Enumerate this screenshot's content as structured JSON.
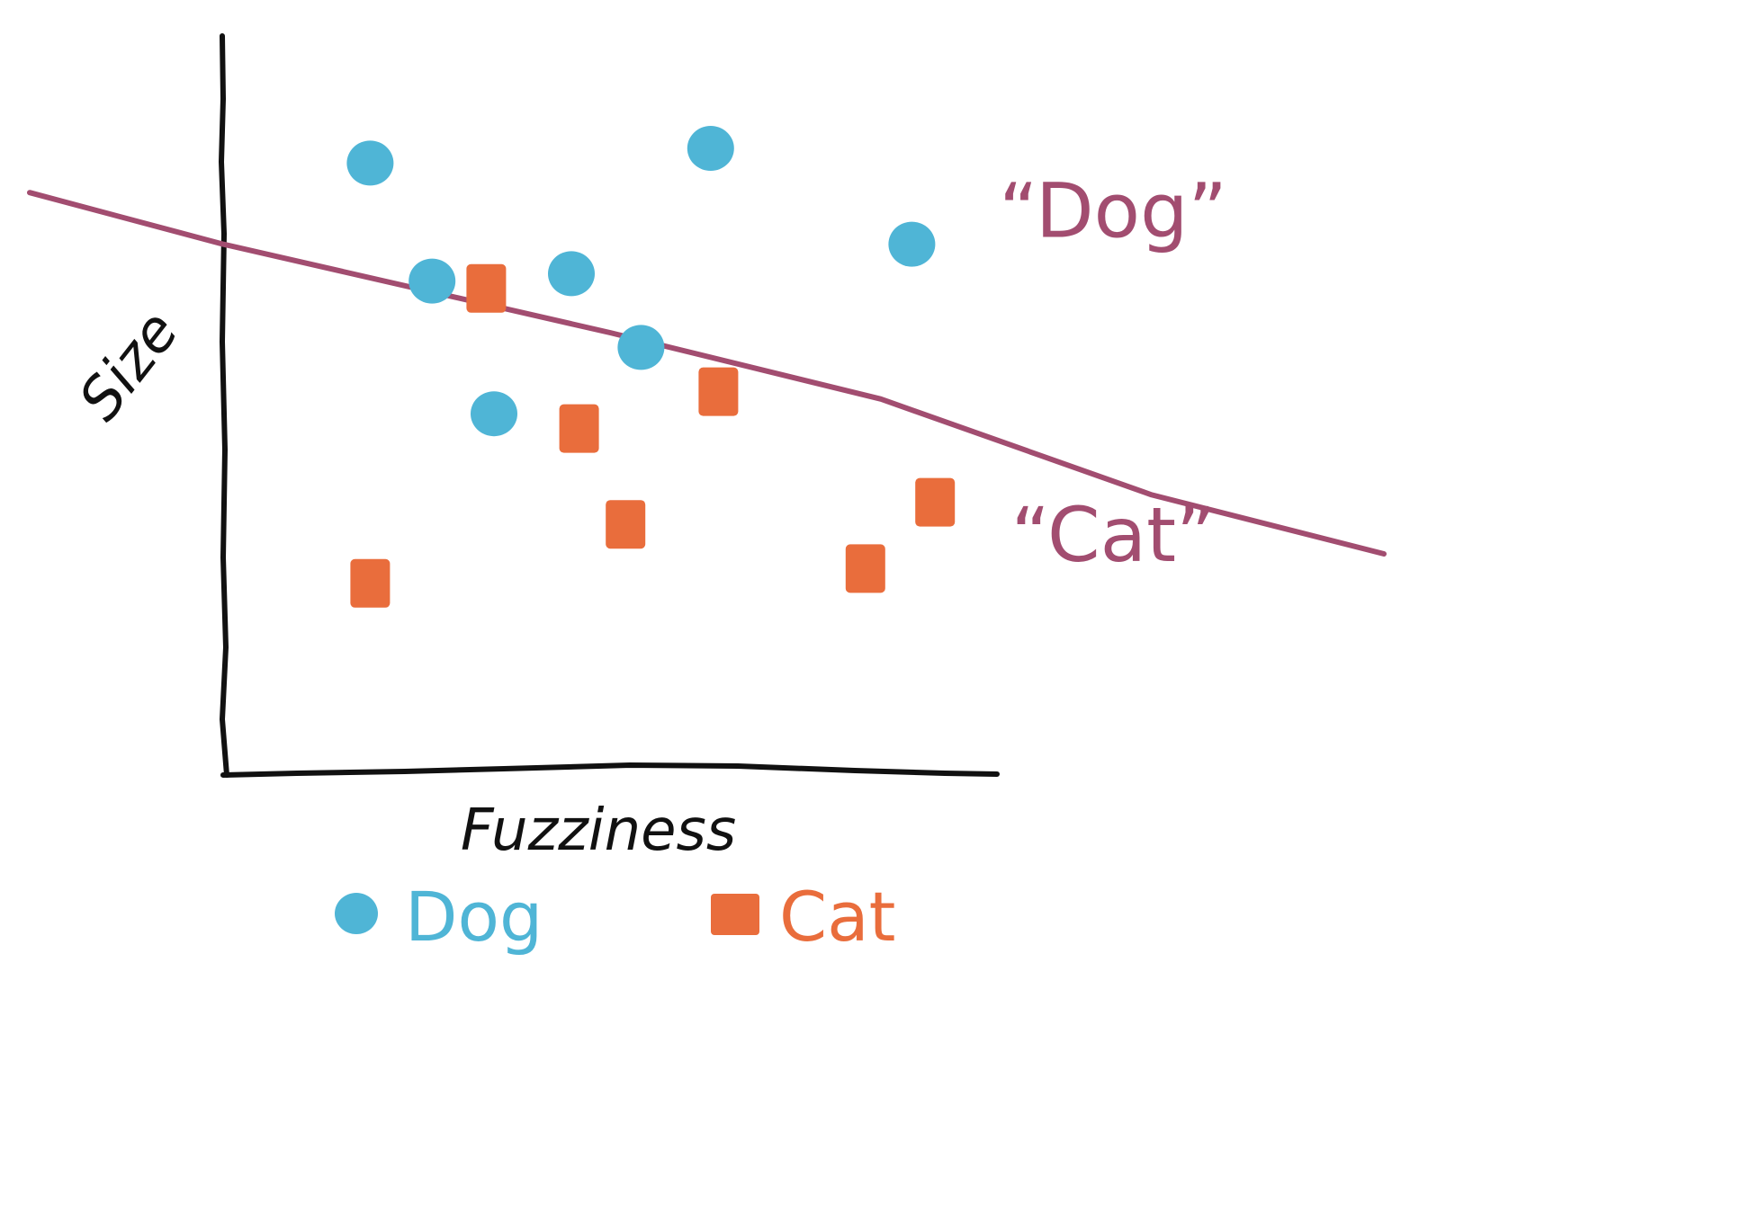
{
  "chart_data": {
    "type": "scatter",
    "title": "",
    "xlabel": "Fuzziness",
    "ylabel": "Size",
    "series": [
      {
        "name": "Dog",
        "marker": "circle",
        "color": "#4fb5d6",
        "points": [
          {
            "x": 1.9,
            "y": 8.3
          },
          {
            "x": 6.3,
            "y": 8.5
          },
          {
            "x": 2.7,
            "y": 6.7
          },
          {
            "x": 4.5,
            "y": 6.8
          },
          {
            "x": 8.9,
            "y": 7.2
          },
          {
            "x": 5.4,
            "y": 5.8
          },
          {
            "x": 3.5,
            "y": 4.9
          }
        ]
      },
      {
        "name": "Cat",
        "marker": "square",
        "color": "#e96d3c",
        "points": [
          {
            "x": 3.4,
            "y": 6.6
          },
          {
            "x": 6.4,
            "y": 5.2
          },
          {
            "x": 4.6,
            "y": 4.7
          },
          {
            "x": 5.2,
            "y": 3.4
          },
          {
            "x": 9.2,
            "y": 3.7
          },
          {
            "x": 8.3,
            "y": 2.8
          },
          {
            "x": 1.9,
            "y": 2.6
          }
        ]
      }
    ],
    "decision_boundary": {
      "color": "#a24d70",
      "points": [
        {
          "x": -2.5,
          "y": 7.9
        },
        {
          "x": 0.0,
          "y": 7.2
        },
        {
          "x": 2.5,
          "y": 6.6
        },
        {
          "x": 5.0,
          "y": 6.0
        },
        {
          "x": 8.5,
          "y": 5.1
        },
        {
          "x": 12.0,
          "y": 3.8
        },
        {
          "x": 15.0,
          "y": 3.0
        }
      ]
    },
    "region_labels": [
      {
        "text": "“Dog”",
        "x": 11.5,
        "y": 7.3
      },
      {
        "text": "“Cat”",
        "x": 11.5,
        "y": 2.9
      }
    ],
    "legend": {
      "position": "bottom",
      "entries": [
        {
          "label": "Dog",
          "marker": "circle",
          "color": "#4fb5d6"
        },
        {
          "label": "Cat",
          "marker": "square",
          "color": "#e96d3c"
        }
      ]
    },
    "xlim": [
      0,
      10
    ],
    "ylim": [
      0,
      10
    ],
    "grid": false,
    "ticks": false
  }
}
